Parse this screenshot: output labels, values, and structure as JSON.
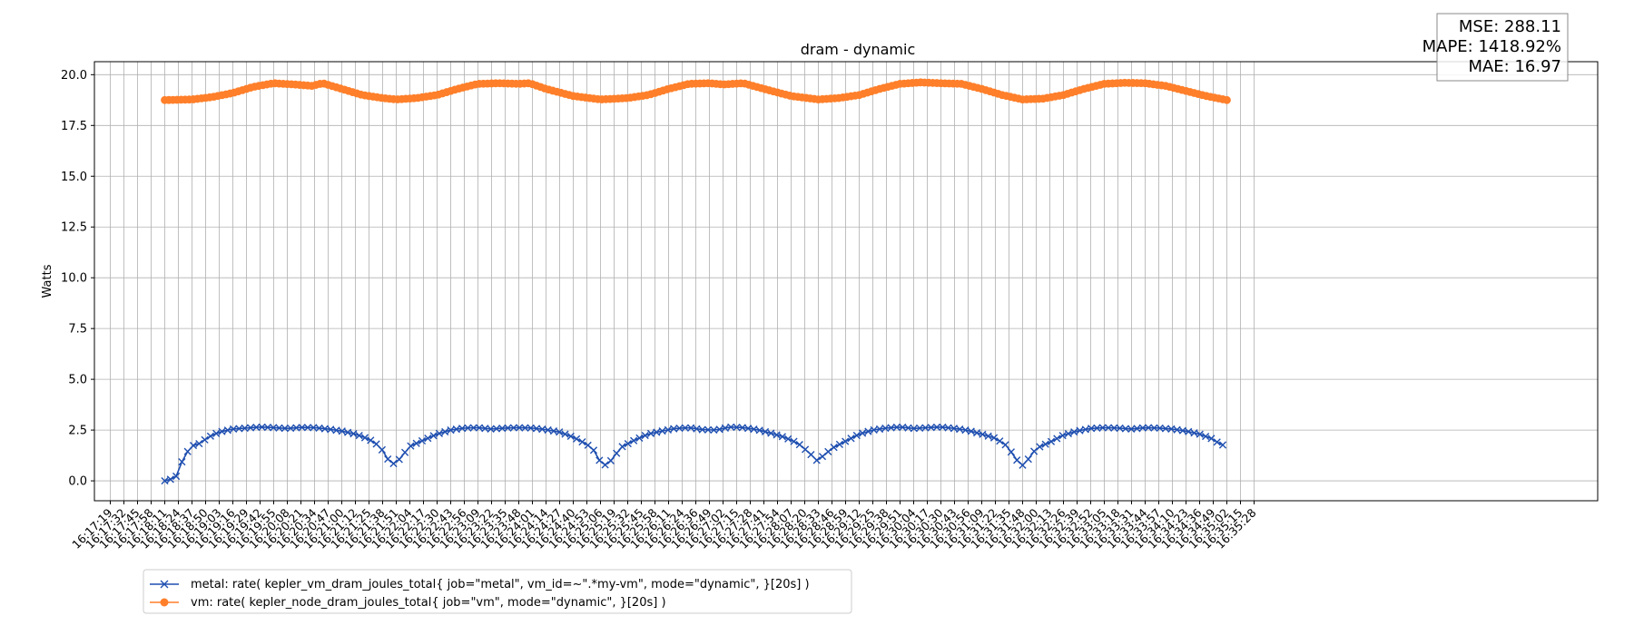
{
  "chart_data": {
    "type": "line",
    "title": "dram - dynamic",
    "xlabel": "",
    "ylabel": "Watts",
    "ylim": [
      -0.98,
      20.64
    ],
    "yticks": [
      "0.0",
      "2.5",
      "5.0",
      "7.5",
      "10.0",
      "12.5",
      "15.0",
      "17.5",
      "20.0"
    ],
    "grid": true,
    "legend_position": "bottom-left",
    "stats": {
      "mse": "MSE: 288.11",
      "mape": "MAPE: 1418.92%",
      "mae": "MAE: 16.97"
    },
    "x_start": "16:17:19",
    "x_interval_seconds": 13,
    "x": [
      "16:17:19",
      "16:17:32",
      "16:17:45",
      "16:17:58",
      "16:18:11",
      "16:18:24",
      "16:18:37",
      "16:18:50",
      "16:19:03",
      "16:19:16",
      "16:19:29",
      "16:19:42",
      "16:19:55",
      "16:20:08",
      "16:20:21",
      "16:20:34",
      "16:20:47",
      "16:21:00",
      "16:21:12",
      "16:21:25",
      "16:21:38",
      "16:21:51",
      "16:22:04",
      "16:22:17",
      "16:22:30",
      "16:22:43",
      "16:22:56",
      "16:23:09",
      "16:23:22",
      "16:23:35",
      "16:23:48",
      "16:24:01",
      "16:24:14",
      "16:24:27",
      "16:24:40",
      "16:24:53",
      "16:25:06",
      "16:25:19",
      "16:25:32",
      "16:25:45",
      "16:25:58",
      "16:26:11",
      "16:26:24",
      "16:26:36",
      "16:26:49",
      "16:27:02",
      "16:27:15",
      "16:27:28",
      "16:27:41",
      "16:27:54",
      "16:28:07",
      "16:28:20",
      "16:28:33",
      "16:28:46",
      "16:28:59",
      "16:29:12",
      "16:29:25",
      "16:29:38",
      "16:29:51",
      "16:30:04",
      "16:30:17",
      "16:30:30",
      "16:30:43",
      "16:30:56",
      "16:31:09",
      "16:31:22",
      "16:31:35",
      "16:31:48",
      "16:32:00",
      "16:32:13",
      "16:32:26",
      "16:32:39",
      "16:32:52",
      "16:33:05",
      "16:33:18",
      "16:33:31",
      "16:33:44",
      "16:33:57",
      "16:34:10",
      "16:34:23",
      "16:34:36",
      "16:34:49",
      "16:35:02",
      "16:35:15",
      "16:35:28"
    ],
    "series": [
      {
        "name": "metal: rate( kepler_vm_dram_joules_total{ job=\"metal\", vm_id=~\".*my-vm\", mode=\"dynamic\", }[20s] )",
        "color": "#1f4fb0",
        "marker": "x",
        "anchors": [
          {
            "t": 4.0,
            "v": 0.0
          },
          {
            "t": 4.45,
            "v": 0.08
          },
          {
            "t": 4.9,
            "v": 0.25
          },
          {
            "t": 5.4,
            "v": 1.2
          },
          {
            "t": 6.0,
            "v": 1.72
          },
          {
            "t": 6.6,
            "v": 1.85
          },
          {
            "t": 7.2,
            "v": 2.15
          },
          {
            "t": 8.0,
            "v": 2.4
          },
          {
            "t": 9.0,
            "v": 2.55
          },
          {
            "t": 10.0,
            "v": 2.6
          },
          {
            "t": 11.0,
            "v": 2.65
          },
          {
            "t": 12.0,
            "v": 2.62
          },
          {
            "t": 13.0,
            "v": 2.58
          },
          {
            "t": 14.0,
            "v": 2.63
          },
          {
            "t": 15.0,
            "v": 2.62
          },
          {
            "t": 16.0,
            "v": 2.55
          },
          {
            "t": 17.0,
            "v": 2.45
          },
          {
            "t": 18.0,
            "v": 2.3
          },
          {
            "t": 19.0,
            "v": 2.05
          },
          {
            "t": 19.8,
            "v": 1.7
          },
          {
            "t": 20.4,
            "v": 1.05
          },
          {
            "t": 20.9,
            "v": 0.8
          },
          {
            "t": 21.4,
            "v": 1.2
          },
          {
            "t": 22.0,
            "v": 1.7
          },
          {
            "t": 23.0,
            "v": 2.0
          },
          {
            "t": 24.0,
            "v": 2.3
          },
          {
            "t": 25.0,
            "v": 2.5
          },
          {
            "t": 26.0,
            "v": 2.6
          },
          {
            "t": 27.0,
            "v": 2.62
          },
          {
            "t": 28.0,
            "v": 2.55
          },
          {
            "t": 29.0,
            "v": 2.6
          },
          {
            "t": 30.0,
            "v": 2.62
          },
          {
            "t": 31.0,
            "v": 2.6
          },
          {
            "t": 32.0,
            "v": 2.52
          },
          {
            "t": 33.0,
            "v": 2.4
          },
          {
            "t": 34.0,
            "v": 2.15
          },
          {
            "t": 35.0,
            "v": 1.8
          },
          {
            "t": 35.6,
            "v": 1.45
          },
          {
            "t": 36.0,
            "v": 0.9
          },
          {
            "t": 36.45,
            "v": 0.75
          },
          {
            "t": 36.9,
            "v": 1.1
          },
          {
            "t": 37.5,
            "v": 1.65
          },
          {
            "t": 38.5,
            "v": 2.0
          },
          {
            "t": 39.5,
            "v": 2.3
          },
          {
            "t": 40.5,
            "v": 2.45
          },
          {
            "t": 41.5,
            "v": 2.58
          },
          {
            "t": 42.5,
            "v": 2.62
          },
          {
            "t": 43.5,
            "v": 2.52
          },
          {
            "t": 44.5,
            "v": 2.5
          },
          {
            "t": 45.5,
            "v": 2.65
          },
          {
            "t": 46.5,
            "v": 2.62
          },
          {
            "t": 47.5,
            "v": 2.52
          },
          {
            "t": 48.5,
            "v": 2.35
          },
          {
            "t": 49.5,
            "v": 2.15
          },
          {
            "t": 50.5,
            "v": 1.85
          },
          {
            "t": 51.3,
            "v": 1.4
          },
          {
            "t": 51.9,
            "v": 1.0
          },
          {
            "t": 52.4,
            "v": 1.25
          },
          {
            "t": 53.0,
            "v": 1.6
          },
          {
            "t": 54.0,
            "v": 1.95
          },
          {
            "t": 55.0,
            "v": 2.3
          },
          {
            "t": 56.0,
            "v": 2.5
          },
          {
            "t": 57.0,
            "v": 2.6
          },
          {
            "t": 58.0,
            "v": 2.65
          },
          {
            "t": 59.0,
            "v": 2.58
          },
          {
            "t": 60.0,
            "v": 2.62
          },
          {
            "t": 61.0,
            "v": 2.65
          },
          {
            "t": 62.0,
            "v": 2.58
          },
          {
            "t": 63.0,
            "v": 2.48
          },
          {
            "t": 64.0,
            "v": 2.3
          },
          {
            "t": 65.0,
            "v": 2.1
          },
          {
            "t": 65.8,
            "v": 1.75
          },
          {
            "t": 66.4,
            "v": 1.2
          },
          {
            "t": 66.9,
            "v": 0.7
          },
          {
            "t": 67.4,
            "v": 1.05
          },
          {
            "t": 68.0,
            "v": 1.6
          },
          {
            "t": 69.0,
            "v": 1.9
          },
          {
            "t": 70.0,
            "v": 2.25
          },
          {
            "t": 71.0,
            "v": 2.45
          },
          {
            "t": 72.0,
            "v": 2.58
          },
          {
            "t": 73.0,
            "v": 2.62
          },
          {
            "t": 74.0,
            "v": 2.6
          },
          {
            "t": 75.0,
            "v": 2.55
          },
          {
            "t": 76.0,
            "v": 2.62
          },
          {
            "t": 77.0,
            "v": 2.6
          },
          {
            "t": 78.0,
            "v": 2.55
          },
          {
            "t": 79.0,
            "v": 2.45
          },
          {
            "t": 80.0,
            "v": 2.3
          },
          {
            "t": 81.0,
            "v": 2.05
          },
          {
            "t": 81.5,
            "v": 1.8
          },
          {
            "t": 82.0,
            "v": 1.72
          }
        ]
      },
      {
        "name": "vm: rate( kepler_node_dram_joules_total{ job=\"vm\", mode=\"dynamic\", }[20s] )",
        "color": "#ff7f2a",
        "marker": "o",
        "anchors": [
          {
            "t": 4.0,
            "v": 18.75
          },
          {
            "t": 6.0,
            "v": 18.78
          },
          {
            "t": 7.5,
            "v": 18.9
          },
          {
            "t": 9.0,
            "v": 19.1
          },
          {
            "t": 10.5,
            "v": 19.4
          },
          {
            "t": 12.0,
            "v": 19.58
          },
          {
            "t": 13.5,
            "v": 19.52
          },
          {
            "t": 14.8,
            "v": 19.45
          },
          {
            "t": 15.6,
            "v": 19.58
          },
          {
            "t": 17.0,
            "v": 19.3
          },
          {
            "t": 18.5,
            "v": 19.0
          },
          {
            "t": 20.0,
            "v": 18.85
          },
          {
            "t": 21.0,
            "v": 18.78
          },
          {
            "t": 22.5,
            "v": 18.85
          },
          {
            "t": 24.0,
            "v": 19.0
          },
          {
            "t": 25.5,
            "v": 19.3
          },
          {
            "t": 27.0,
            "v": 19.55
          },
          {
            "t": 28.5,
            "v": 19.58
          },
          {
            "t": 30.0,
            "v": 19.55
          },
          {
            "t": 30.8,
            "v": 19.58
          },
          {
            "t": 32.0,
            "v": 19.3
          },
          {
            "t": 34.0,
            "v": 18.95
          },
          {
            "t": 36.0,
            "v": 18.78
          },
          {
            "t": 38.0,
            "v": 18.85
          },
          {
            "t": 39.5,
            "v": 19.0
          },
          {
            "t": 41.0,
            "v": 19.3
          },
          {
            "t": 42.5,
            "v": 19.55
          },
          {
            "t": 44.0,
            "v": 19.58
          },
          {
            "t": 45.0,
            "v": 19.52
          },
          {
            "t": 46.5,
            "v": 19.58
          },
          {
            "t": 48.0,
            "v": 19.3
          },
          {
            "t": 50.0,
            "v": 18.95
          },
          {
            "t": 52.0,
            "v": 18.78
          },
          {
            "t": 53.5,
            "v": 18.85
          },
          {
            "t": 55.0,
            "v": 19.0
          },
          {
            "t": 56.5,
            "v": 19.3
          },
          {
            "t": 58.0,
            "v": 19.55
          },
          {
            "t": 59.5,
            "v": 19.62
          },
          {
            "t": 61.0,
            "v": 19.58
          },
          {
            "t": 62.5,
            "v": 19.55
          },
          {
            "t": 64.0,
            "v": 19.3
          },
          {
            "t": 65.5,
            "v": 19.0
          },
          {
            "t": 67.0,
            "v": 18.78
          },
          {
            "t": 68.5,
            "v": 18.82
          },
          {
            "t": 70.0,
            "v": 19.0
          },
          {
            "t": 71.5,
            "v": 19.3
          },
          {
            "t": 73.0,
            "v": 19.55
          },
          {
            "t": 74.5,
            "v": 19.6
          },
          {
            "t": 76.0,
            "v": 19.58
          },
          {
            "t": 77.5,
            "v": 19.45
          },
          {
            "t": 79.0,
            "v": 19.2
          },
          {
            "t": 80.5,
            "v": 18.95
          },
          {
            "t": 82.0,
            "v": 18.75
          }
        ]
      }
    ]
  }
}
